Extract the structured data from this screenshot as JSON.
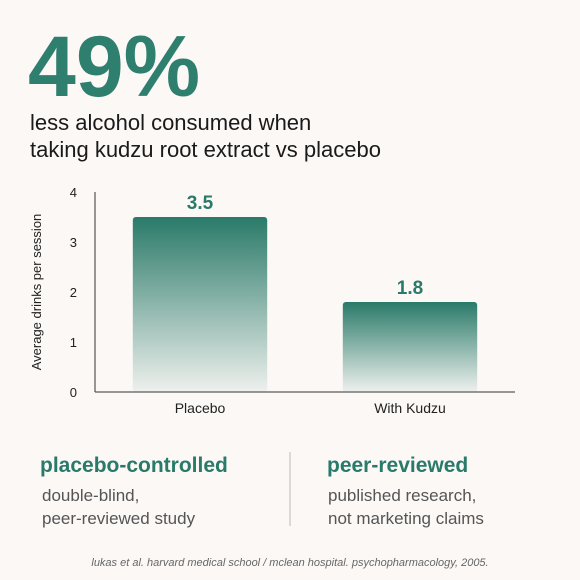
{
  "headline": {
    "stat": "49%",
    "lines": [
      "less alcohol consumed when",
      "taking kudzu root extract vs placebo"
    ]
  },
  "chart_data": {
    "type": "bar",
    "categories": [
      "Placebo",
      "With Kudzu"
    ],
    "values": [
      3.5,
      1.8
    ],
    "color": "#2a7a69",
    "ylabel": "Average drinks per session",
    "ylim": [
      0,
      4
    ],
    "yticks": [
      0,
      1,
      2,
      3,
      4
    ],
    "grid": false
  },
  "features": [
    {
      "title": "placebo-controlled",
      "lines": [
        "double-blind,",
        "peer-reviewed study"
      ]
    },
    {
      "title": "peer-reviewed",
      "lines": [
        "published research,",
        "not marketing claims"
      ]
    }
  ],
  "footer": "lukas et al. harvard medical school / mclean hospital. psychopharmacology, 2005."
}
